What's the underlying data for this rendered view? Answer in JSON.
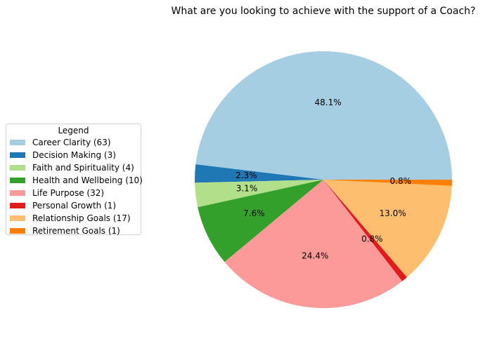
{
  "chart_data": {
    "type": "pie",
    "title": "What are you looking to achieve with the support of a Coach?",
    "start_angle_deg": 0,
    "counterclockwise": true,
    "legend": {
      "title": "Legend",
      "placement": "center-left"
    },
    "slices": [
      {
        "label": "Career Clarity (63)",
        "value": 63,
        "pct_label": "48.1%",
        "color": "#a6cee3"
      },
      {
        "label": "Decision Making (3)",
        "value": 3,
        "pct_label": "2.3%",
        "color": "#1f78b4"
      },
      {
        "label": "Faith and Spirituality (4)",
        "value": 4,
        "pct_label": "3.1%",
        "color": "#b2df8a"
      },
      {
        "label": "Health and Wellbeing (10)",
        "value": 10,
        "pct_label": "7.6%",
        "color": "#33a02c"
      },
      {
        "label": "Life Purpose (32)",
        "value": 32,
        "pct_label": "24.4%",
        "color": "#fb9a99"
      },
      {
        "label": "Personal Growth (1)",
        "value": 1,
        "pct_label": "0.8%",
        "color": "#e31a1c"
      },
      {
        "label": "Relationship Goals (17)",
        "value": 17,
        "pct_label": "13.0%",
        "color": "#fdbf6f"
      },
      {
        "label": "Retirement Goals (1)",
        "value": 1,
        "pct_label": "0.8%",
        "color": "#ff7f00"
      }
    ]
  }
}
